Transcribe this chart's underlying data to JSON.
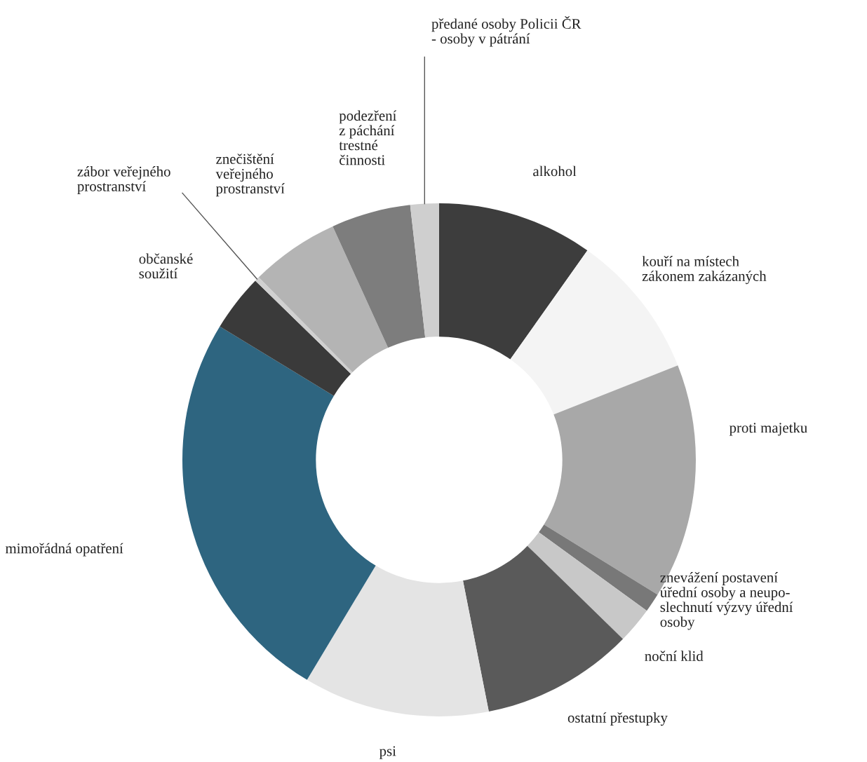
{
  "chart_data": {
    "type": "donut",
    "categories": [
      "alkohol",
      "kouří na místech\nzákonem zakázaných",
      "proti majetku",
      "znevážení postavení\núřední osoby a neupo-\nslechnutí výzvy úřední\nosoby",
      "noční klid",
      "ostatní přestupky",
      "psi",
      "mimořádná opatření",
      "občanské\nsoužití",
      "zábor veřejného\nprostranství",
      "znečištění\nveřejného\nprostranství",
      "podezření\nz páchání\ntrestné\nčinnosti",
      "předané osoby Policii ČR\n- osoby v pátrání"
    ],
    "values": [
      9.8,
      9.2,
      14.8,
      1.2,
      2.3,
      9.6,
      11.7,
      25.1,
      3.6,
      0.3,
      5.6,
      5.0,
      1.8
    ],
    "colors": [
      "#3d3d3d",
      "#f4f4f4",
      "#a8a8a8",
      "#787878",
      "#c8c8c8",
      "#5a5a5a",
      "#e4e4e4",
      "#2e6580",
      "#3a3a3a",
      "#d0d0d0",
      "#b4b4b4",
      "#7d7d7d",
      "#cfcfcf"
    ]
  }
}
